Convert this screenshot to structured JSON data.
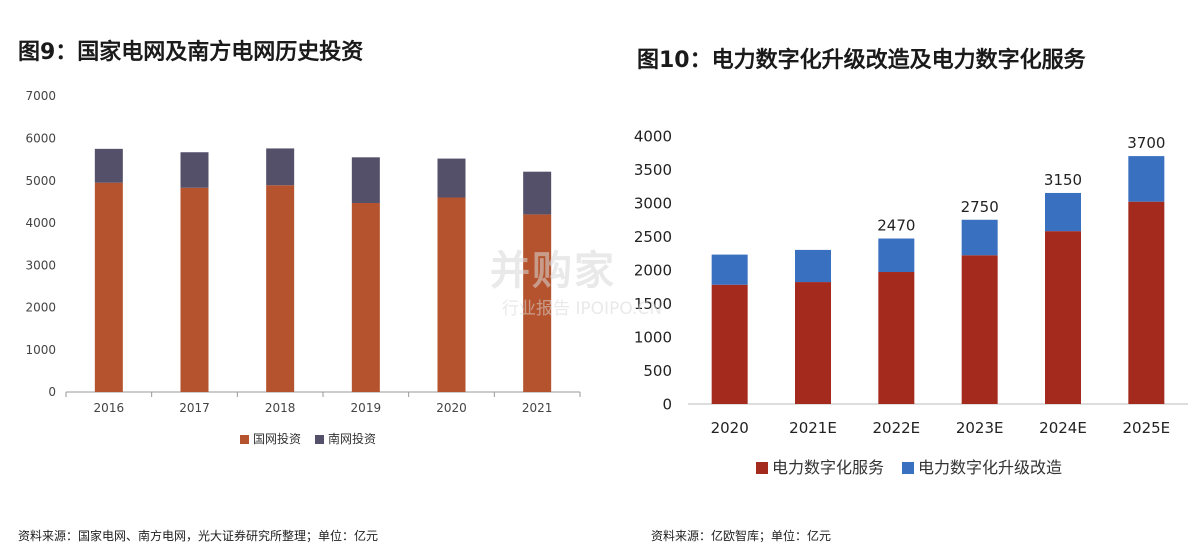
{
  "left": {
    "title": "图9：国家电网及南方电网历史投资",
    "source": "资料来源：国家电网、南方电网，光大证券研究所整理；单位：亿元"
  },
  "right": {
    "title": "图10：电力数字化升级改造及电力数字化服务",
    "source": "资料来源：亿欧智库；单位：亿元"
  },
  "watermark": {
    "main": "并购家",
    "sub": "行业报告 IPOIPO.CN"
  },
  "chart_data": [
    {
      "type": "bar",
      "stacked": true,
      "categories": [
        "2016",
        "2017",
        "2018",
        "2019",
        "2020",
        "2021"
      ],
      "series": [
        {
          "name": "国网投资",
          "color": "#B5532E",
          "values": [
            4950,
            4830,
            4890,
            4470,
            4600,
            4200
          ]
        },
        {
          "name": "南网投资",
          "color": "#54506A",
          "values": [
            800,
            840,
            870,
            1080,
            920,
            1010
          ]
        }
      ],
      "ylim": [
        0,
        7000
      ],
      "yticks": [
        0,
        1000,
        2000,
        3000,
        4000,
        5000,
        6000,
        7000
      ],
      "legend": "bottom",
      "grid": false
    },
    {
      "type": "bar",
      "stacked": true,
      "categories": [
        "2020",
        "2021E",
        "2022E",
        "2023E",
        "2024E",
        "2025E"
      ],
      "series": [
        {
          "name": "电力数字化服务",
          "color": "#A52A1E",
          "values": [
            1780,
            1820,
            1970,
            2220,
            2580,
            3020
          ]
        },
        {
          "name": "电力数字化升级改造",
          "color": "#3A70C0",
          "values": [
            450,
            480,
            500,
            530,
            570,
            680
          ]
        }
      ],
      "totals": [
        "",
        "",
        "2470",
        "2750",
        "3150",
        "3700"
      ],
      "ylim": [
        0,
        4000
      ],
      "yticks": [
        0,
        500,
        1000,
        1500,
        2000,
        2500,
        3000,
        3500,
        4000
      ],
      "legend": "bottom",
      "grid": false
    }
  ]
}
